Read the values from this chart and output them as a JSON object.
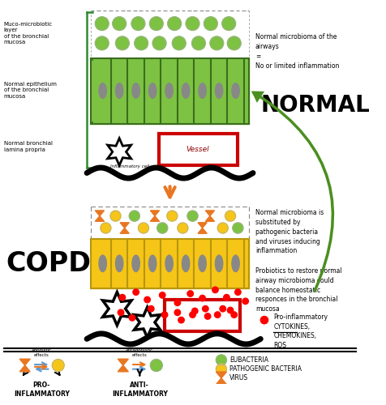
{
  "bg_color": "#ffffff",
  "fig_width": 4.76,
  "fig_height": 5.0,
  "normal_label": "NORMAL",
  "copd_label": "COPD",
  "normal_microbioma_text": "Normal microbioma of the\nairways\n=\nNo or limited inflammation",
  "muco_label": "Muco-microbiotic\nlayer\nof the bronchial\nmucosa",
  "epithelium_label": "Normal epithelium\nof the bronchial\nmucosa",
  "lamina_label": "Normal bronchial\nlamina propria",
  "copd_micro_text": "Normal microbioma is\nsubstituted by\npathogenic bacteria\nand viruses inducing\ninflammation",
  "probiotics_text": "Probiotics to restore normal\nairway microbioma could\nbalance homeostatic\nresponces in the bronchial\nmucosa",
  "pro_inflam_text": "Pro-inflammatory\nCYTOKINES,\nCHEMOKINES,\nROS",
  "eubacteria_color": "#7dc242",
  "pathogenic_color": "#f5c518",
  "virus_color": "#e87722",
  "epithelium_normal_color": "#7dc242",
  "epithelium_copd_color": "#f5c518",
  "vessel_color": "#cc0000",
  "arrow_green_color": "#4a8f20",
  "arrow_orange_color": "#e87722",
  "green_bracket_color": "#2e8b2e"
}
